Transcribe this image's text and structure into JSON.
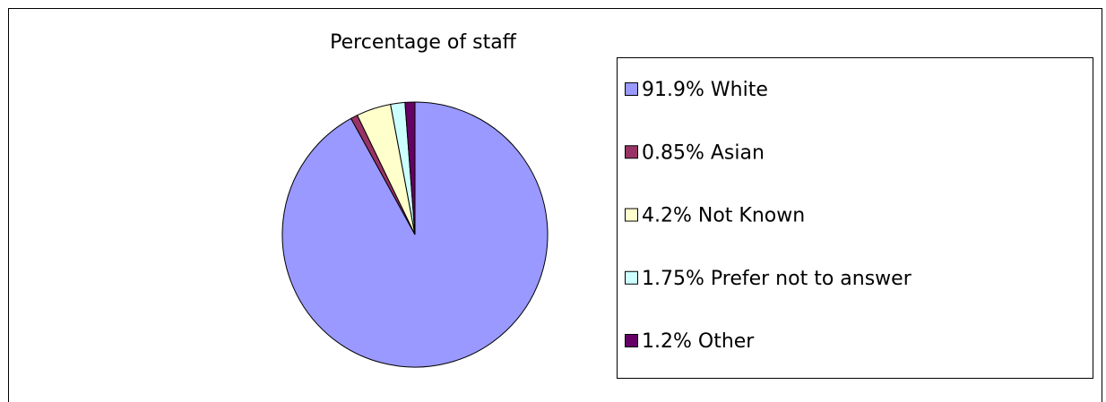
{
  "chart_data": {
    "type": "pie",
    "title": "Percentage of staff",
    "categories": [
      "91.9% White",
      "0.85% Asian",
      "4.2% Not  Known",
      "1.75% Prefer not to answer",
      "1.2% Other"
    ],
    "values": [
      91.9,
      0.85,
      4.2,
      1.75,
      1.2
    ],
    "colors": [
      "#9999ff",
      "#993366",
      "#ffffcc",
      "#ccffff",
      "#660066"
    ],
    "legend": "right"
  }
}
